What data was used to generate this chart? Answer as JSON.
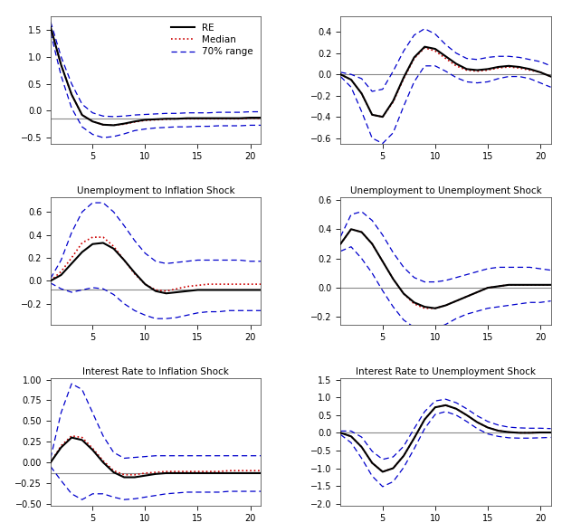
{
  "x": [
    1,
    2,
    3,
    4,
    5,
    6,
    7,
    8,
    9,
    10,
    11,
    12,
    13,
    14,
    15,
    16,
    17,
    18,
    19,
    20,
    21
  ],
  "panels": [
    {
      "title": "",
      "re": [
        1.55,
        0.85,
        0.3,
        -0.08,
        -0.2,
        -0.26,
        -0.27,
        -0.24,
        -0.2,
        -0.17,
        -0.16,
        -0.15,
        -0.15,
        -0.14,
        -0.14,
        -0.14,
        -0.14,
        -0.14,
        -0.14,
        -0.13,
        -0.13
      ],
      "median": [
        1.55,
        0.85,
        0.3,
        -0.08,
        -0.2,
        -0.26,
        -0.27,
        -0.25,
        -0.21,
        -0.18,
        -0.17,
        -0.16,
        -0.15,
        -0.15,
        -0.15,
        -0.15,
        -0.15,
        -0.15,
        -0.15,
        -0.14,
        -0.14
      ],
      "upper": [
        1.65,
        1.0,
        0.5,
        0.12,
        -0.04,
        -0.1,
        -0.11,
        -0.1,
        -0.08,
        -0.07,
        -0.06,
        -0.05,
        -0.05,
        -0.04,
        -0.04,
        -0.04,
        -0.03,
        -0.03,
        -0.03,
        -0.02,
        -0.02
      ],
      "lower": [
        1.45,
        0.65,
        0.05,
        -0.3,
        -0.44,
        -0.5,
        -0.48,
        -0.43,
        -0.37,
        -0.34,
        -0.32,
        -0.31,
        -0.3,
        -0.3,
        -0.29,
        -0.29,
        -0.28,
        -0.28,
        -0.28,
        -0.27,
        -0.27
      ],
      "hline": -0.14,
      "ylim": null,
      "yticks": null,
      "has_legend": true
    },
    {
      "title": "",
      "re": [
        0.0,
        -0.05,
        -0.18,
        -0.38,
        -0.4,
        -0.25,
        -0.03,
        0.16,
        0.26,
        0.24,
        0.17,
        0.1,
        0.05,
        0.04,
        0.05,
        0.07,
        0.08,
        0.07,
        0.05,
        0.02,
        -0.02
      ],
      "median": [
        0.0,
        -0.05,
        -0.18,
        -0.38,
        -0.4,
        -0.26,
        -0.04,
        0.15,
        0.25,
        0.22,
        0.15,
        0.08,
        0.04,
        0.03,
        0.04,
        0.06,
        0.07,
        0.06,
        0.04,
        0.02,
        -0.02
      ],
      "upper": [
        0.02,
        0.0,
        -0.04,
        -0.16,
        -0.14,
        0.03,
        0.22,
        0.37,
        0.43,
        0.38,
        0.28,
        0.2,
        0.15,
        0.14,
        0.16,
        0.17,
        0.17,
        0.16,
        0.14,
        0.12,
        0.08
      ],
      "lower": [
        -0.02,
        -0.12,
        -0.35,
        -0.6,
        -0.65,
        -0.55,
        -0.3,
        -0.07,
        0.08,
        0.08,
        0.03,
        -0.03,
        -0.07,
        -0.08,
        -0.07,
        -0.04,
        -0.02,
        -0.02,
        -0.04,
        -0.08,
        -0.12
      ],
      "hline": 0.0,
      "ylim": [
        -0.65,
        0.55
      ],
      "yticks": [
        -0.6,
        -0.4,
        -0.2,
        0.0,
        0.2,
        0.4
      ],
      "has_legend": false
    },
    {
      "title": "Unemployment to Inflation Shock",
      "re": [
        0.0,
        0.05,
        0.15,
        0.25,
        0.32,
        0.33,
        0.28,
        0.18,
        0.07,
        -0.03,
        -0.09,
        -0.11,
        -0.1,
        -0.09,
        -0.08,
        -0.08,
        -0.08,
        -0.08,
        -0.08,
        -0.08,
        -0.08
      ],
      "median": [
        0.0,
        0.08,
        0.2,
        0.33,
        0.38,
        0.38,
        0.3,
        0.18,
        0.06,
        -0.03,
        -0.08,
        -0.09,
        -0.07,
        -0.05,
        -0.04,
        -0.03,
        -0.03,
        -0.03,
        -0.03,
        -0.03,
        -0.03
      ],
      "upper": [
        0.02,
        0.18,
        0.42,
        0.6,
        0.68,
        0.68,
        0.6,
        0.48,
        0.35,
        0.24,
        0.17,
        0.15,
        0.16,
        0.17,
        0.18,
        0.18,
        0.18,
        0.18,
        0.18,
        0.17,
        0.17
      ],
      "lower": [
        -0.02,
        -0.07,
        -0.1,
        -0.08,
        -0.06,
        -0.07,
        -0.12,
        -0.2,
        -0.26,
        -0.3,
        -0.33,
        -0.33,
        -0.32,
        -0.3,
        -0.28,
        -0.27,
        -0.27,
        -0.26,
        -0.26,
        -0.26,
        -0.26
      ],
      "hline": -0.08,
      "ylim": null,
      "yticks": null,
      "has_legend": false
    },
    {
      "title": "Unemployment to Unemployment Shock",
      "re": [
        0.3,
        0.4,
        0.38,
        0.3,
        0.18,
        0.06,
        -0.04,
        -0.1,
        -0.13,
        -0.14,
        -0.12,
        -0.09,
        -0.06,
        -0.03,
        0.0,
        0.01,
        0.02,
        0.02,
        0.02,
        0.02,
        0.02
      ],
      "median": [
        0.3,
        0.4,
        0.38,
        0.3,
        0.18,
        0.06,
        -0.04,
        -0.11,
        -0.14,
        -0.14,
        -0.12,
        -0.09,
        -0.06,
        -0.03,
        0.0,
        0.01,
        0.02,
        0.02,
        0.02,
        0.02,
        0.02
      ],
      "upper": [
        0.35,
        0.5,
        0.52,
        0.46,
        0.36,
        0.24,
        0.14,
        0.07,
        0.04,
        0.04,
        0.05,
        0.07,
        0.09,
        0.11,
        0.13,
        0.14,
        0.14,
        0.14,
        0.14,
        0.13,
        0.12
      ],
      "lower": [
        0.25,
        0.28,
        0.2,
        0.1,
        -0.02,
        -0.13,
        -0.22,
        -0.27,
        -0.29,
        -0.28,
        -0.25,
        -0.21,
        -0.18,
        -0.16,
        -0.14,
        -0.13,
        -0.12,
        -0.11,
        -0.1,
        -0.1,
        -0.09
      ],
      "hline": 0.0,
      "ylim": [
        -0.25,
        0.62
      ],
      "yticks": [
        -0.2,
        0.0,
        0.2,
        0.4,
        0.6
      ],
      "has_legend": false
    },
    {
      "title": "Interest Rate to Inflation Shock",
      "re": [
        0.0,
        0.18,
        0.3,
        0.27,
        0.15,
        0.0,
        -0.12,
        -0.18,
        -0.18,
        -0.16,
        -0.14,
        -0.13,
        -0.13,
        -0.13,
        -0.13,
        -0.13,
        -0.13,
        -0.13,
        -0.13,
        -0.13,
        -0.13
      ],
      "median": [
        0.0,
        0.2,
        0.32,
        0.3,
        0.17,
        0.02,
        -0.1,
        -0.15,
        -0.15,
        -0.13,
        -0.12,
        -0.11,
        -0.11,
        -0.11,
        -0.11,
        -0.11,
        -0.11,
        -0.1,
        -0.1,
        -0.1,
        -0.1
      ],
      "upper": [
        0.05,
        0.6,
        0.95,
        0.88,
        0.6,
        0.32,
        0.12,
        0.05,
        0.06,
        0.07,
        0.08,
        0.08,
        0.08,
        0.08,
        0.08,
        0.08,
        0.08,
        0.08,
        0.08,
        0.08,
        0.08
      ],
      "lower": [
        -0.05,
        -0.22,
        -0.38,
        -0.45,
        -0.38,
        -0.38,
        -0.42,
        -0.45,
        -0.44,
        -0.42,
        -0.4,
        -0.38,
        -0.37,
        -0.36,
        -0.36,
        -0.36,
        -0.36,
        -0.35,
        -0.35,
        -0.35,
        -0.35
      ],
      "hline": -0.13,
      "ylim": null,
      "yticks": null,
      "has_legend": false
    },
    {
      "title": "Interest Rate to Unemployment Shock",
      "re": [
        0.0,
        -0.1,
        -0.4,
        -0.85,
        -1.1,
        -1.0,
        -0.65,
        -0.15,
        0.38,
        0.72,
        0.78,
        0.68,
        0.5,
        0.3,
        0.15,
        0.06,
        0.02,
        0.0,
        0.0,
        0.01,
        0.01
      ],
      "median": [
        0.0,
        -0.1,
        -0.4,
        -0.85,
        -1.1,
        -1.0,
        -0.65,
        -0.15,
        0.38,
        0.72,
        0.78,
        0.68,
        0.5,
        0.3,
        0.15,
        0.06,
        0.02,
        0.0,
        0.0,
        0.01,
        0.01
      ],
      "upper": [
        0.05,
        0.05,
        -0.12,
        -0.52,
        -0.75,
        -0.68,
        -0.38,
        0.12,
        0.6,
        0.9,
        0.95,
        0.85,
        0.68,
        0.48,
        0.32,
        0.22,
        0.16,
        0.14,
        0.13,
        0.13,
        0.12
      ],
      "lower": [
        -0.05,
        -0.28,
        -0.72,
        -1.22,
        -1.52,
        -1.38,
        -0.98,
        -0.45,
        0.12,
        0.52,
        0.6,
        0.5,
        0.32,
        0.12,
        -0.03,
        -0.1,
        -0.14,
        -0.15,
        -0.15,
        -0.14,
        -0.13
      ],
      "hline": 0.0,
      "ylim": [
        -2.05,
        1.55
      ],
      "yticks": [
        -2.0,
        -1.5,
        -1.0,
        -0.5,
        0.0,
        0.5,
        1.0,
        1.5
      ],
      "has_legend": false
    }
  ],
  "re_color": "#000000",
  "median_color": "#cc0000",
  "band_color": "#0000cc",
  "hline_color": "#888888",
  "xlim": [
    1,
    21
  ],
  "xticks": [
    5,
    10,
    15,
    20
  ]
}
